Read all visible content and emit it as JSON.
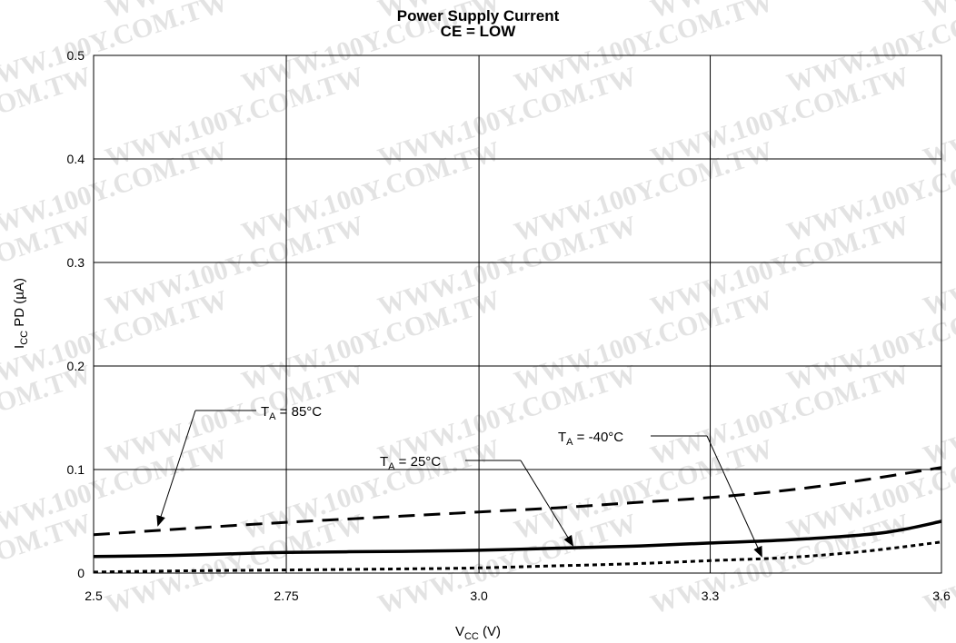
{
  "watermark": "WWW.100Y.COM.TW",
  "chart_data": {
    "type": "line",
    "title": "Power Supply Current",
    "subtitle": "CE = LOW",
    "xlabel": "V",
    "xlabel_sub": "CC",
    "xlabel_unit": " (V)",
    "ylabel": "I",
    "ylabel_sub": "CC",
    "ylabel_rest": " PD (µA)",
    "xlim": [
      2.5,
      3.6
    ],
    "ylim": [
      0,
      0.5
    ],
    "x_gridlines": [
      2.5,
      2.75,
      3.0,
      3.3,
      3.6
    ],
    "x_tick_labels": [
      "2.5",
      "2.75",
      "3.0",
      "3.3",
      "3.6"
    ],
    "y_ticks": [
      0,
      0.1,
      0.2,
      0.3,
      0.4,
      0.5
    ],
    "y_tick_labels": [
      "0",
      "0.1",
      "0.2",
      "0.3",
      "0.4",
      "0.5"
    ],
    "grid": true,
    "legend": "none",
    "series": [
      {
        "label_main": "T",
        "label_sub": "A",
        "label_rest": " = 85°C",
        "style": "long-dash",
        "x": [
          2.5,
          2.6,
          2.75,
          2.9,
          3.0,
          3.1,
          3.2,
          3.3,
          3.4,
          3.5,
          3.6
        ],
        "values": [
          0.037,
          0.042,
          0.049,
          0.055,
          0.059,
          0.063,
          0.068,
          0.073,
          0.08,
          0.09,
          0.102
        ]
      },
      {
        "label_main": "T",
        "label_sub": "A",
        "label_rest": " = 25°C",
        "style": "solid",
        "x": [
          2.5,
          2.6,
          2.7,
          2.75,
          2.9,
          3.0,
          3.1,
          3.2,
          3.3,
          3.4,
          3.5,
          3.55,
          3.6
        ],
        "values": [
          0.016,
          0.017,
          0.019,
          0.02,
          0.021,
          0.022,
          0.024,
          0.026,
          0.029,
          0.032,
          0.037,
          0.042,
          0.05
        ]
      },
      {
        "label_main": "T",
        "label_sub": "A",
        "label_rest": " = -40°C",
        "style": "short-dash",
        "x": [
          2.5,
          2.6,
          2.75,
          2.9,
          3.0,
          3.1,
          3.2,
          3.3,
          3.4,
          3.5,
          3.6
        ],
        "values": [
          0.001,
          0.002,
          0.003,
          0.004,
          0.005,
          0.007,
          0.009,
          0.012,
          0.015,
          0.021,
          0.03
        ]
      }
    ]
  }
}
